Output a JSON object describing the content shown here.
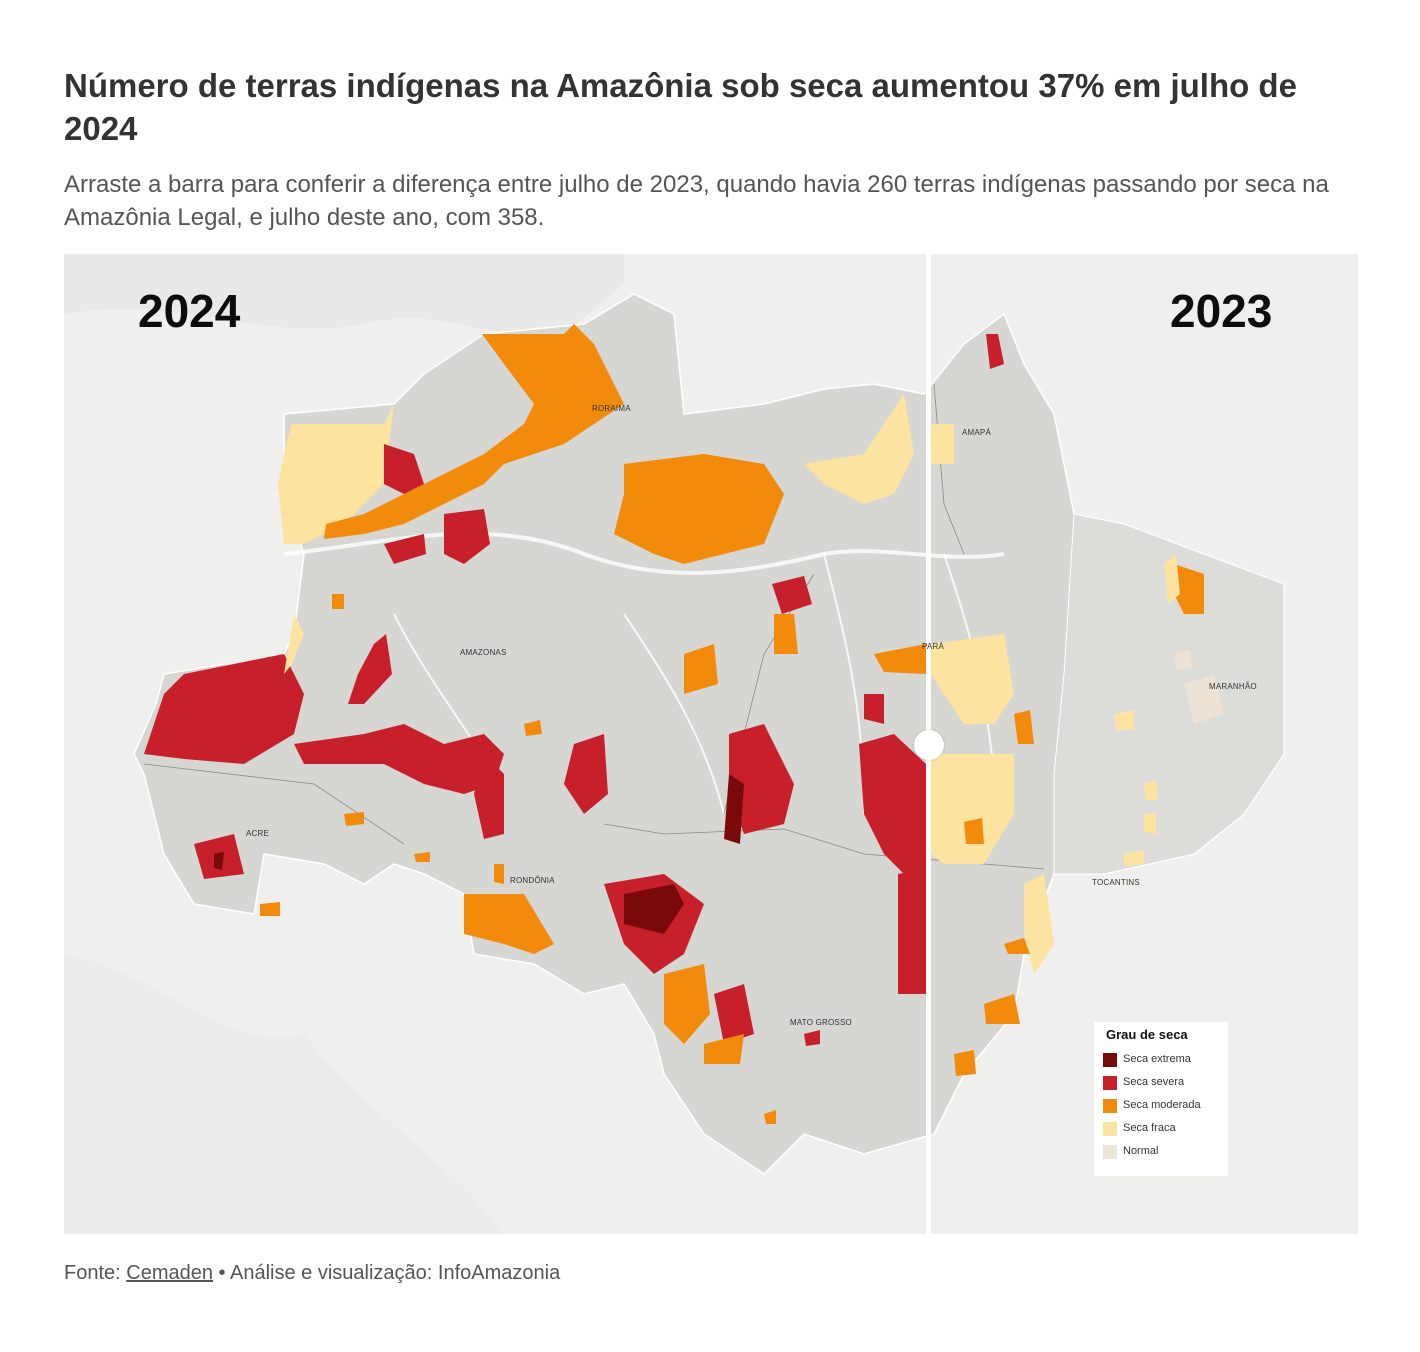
{
  "header": {
    "title": "Número de terras indígenas na Amazônia sob seca aumentou 37% em julho de 2024",
    "subtitle": "Arraste a barra para conferir a diferença entre julho de 2023, quando havia 260 terras indígenas passando por seca na Amazônia Legal, e julho deste ano, com 358."
  },
  "map": {
    "year_left": "2024",
    "year_right": "2023",
    "states": [
      "RORAIMA",
      "AMAPÁ",
      "AMAZONAS",
      "PARÁ",
      "MARANHÃO",
      "ACRE",
      "RONDÔNIA",
      "TOCANTINS",
      "MATO GROSSO"
    ],
    "slider_position": 0.67
  },
  "legend": {
    "title": "Grau de seca",
    "items": [
      {
        "label": "Seca extrema",
        "color": "#7a0a0a"
      },
      {
        "label": "Seca severa",
        "color": "#c8202a"
      },
      {
        "label": "Seca moderada",
        "color": "#f28a0c"
      },
      {
        "label": "Seca fraca",
        "color": "#fde3a0"
      },
      {
        "label": "Normal",
        "color": "#ede2d6"
      }
    ]
  },
  "footer": {
    "prefix": "Fonte:",
    "source_link": "Cemaden",
    "suffix": "• Análise e visualização: InfoAmazonia"
  }
}
